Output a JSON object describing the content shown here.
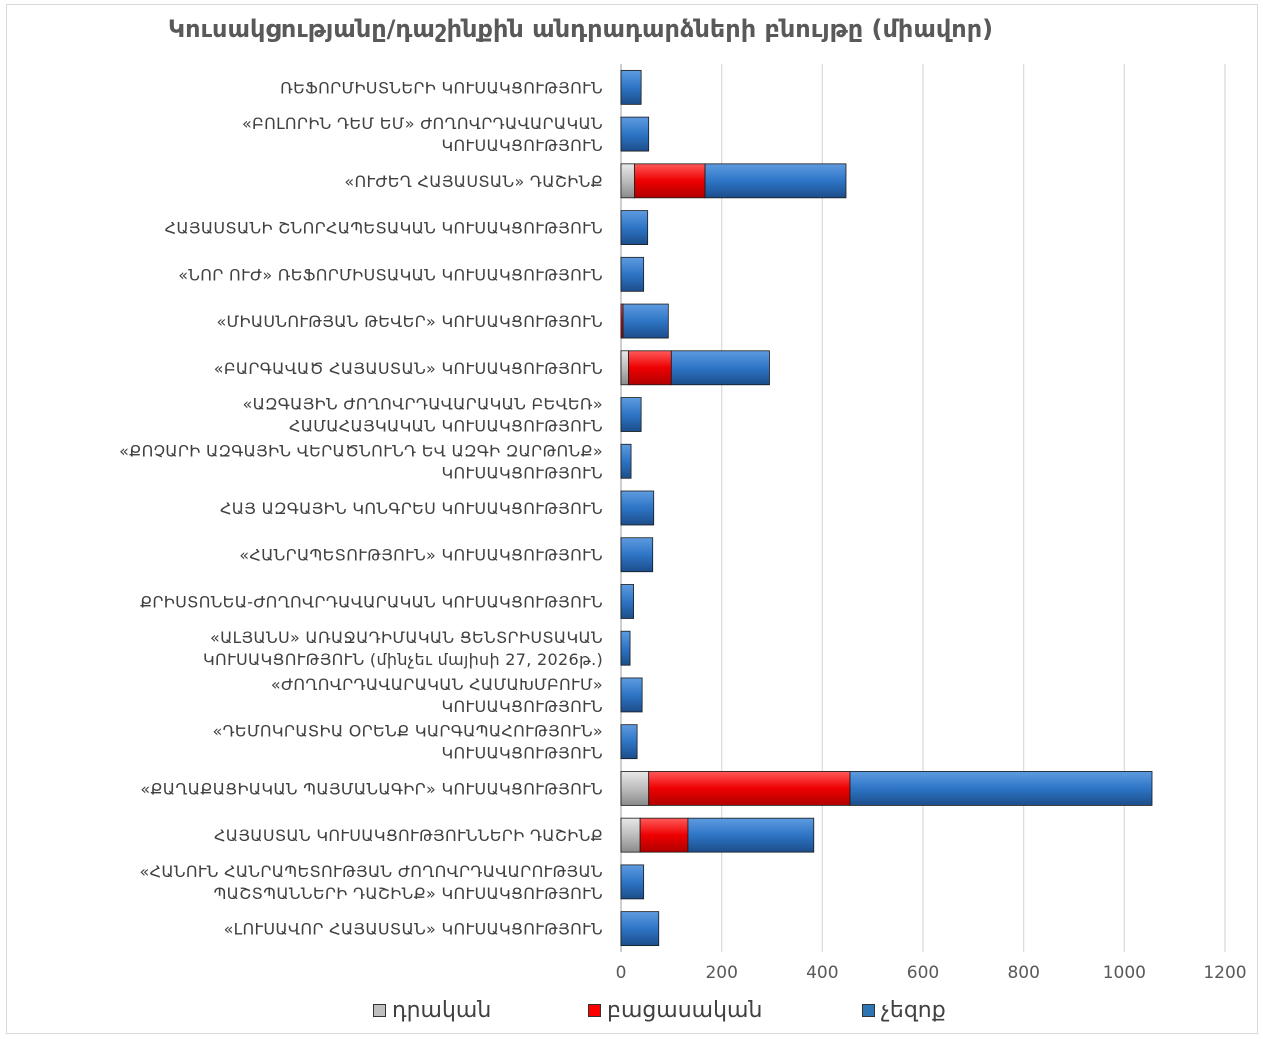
{
  "chart_data": {
    "type": "bar",
    "orientation": "horizontal",
    "stacked": true,
    "title": "Կուսակցությանը/դաշինքին անդրադարձների բնույթը (միավոր)",
    "xlim": [
      0,
      1200
    ],
    "x_ticks": [
      "0",
      "200",
      "400",
      "600",
      "800",
      "1000",
      "1200"
    ],
    "grid": true,
    "legend_position": "bottom",
    "categories": [
      [
        "ՌԵՖՈՐՄԻՍՏՆԵՐԻ ԿՈՒՍԱԿՑՈՒԹՅՈՒՆ"
      ],
      [
        "«ԲՈԼՈՐԻՆ ԴԵՄ ԵՄ» ԺՈՂՈՎՐԴԱՎԱՐԱԿԱՆ",
        "ԿՈՒՍԱԿՑՈՒԹՅՈՒՆ"
      ],
      [
        "«ՈՒԺԵՂ ՀԱՅԱՍՏԱՆ» ԴԱՇԻՆՔ"
      ],
      [
        "ՀԱՅԱՍՏԱՆԻ ՇՆՈՐՀԱՊԵՏԱԿԱՆ ԿՈՒՍԱԿՑՈՒԹՅՈՒՆ"
      ],
      [
        "«ՆՈՐ ՈՒԺ» ՌԵՖՈՐՄԻՍՏԱԿԱՆ ԿՈՒՍԱԿՑՈՒԹՅՈՒՆ"
      ],
      [
        "«ՄԻԱՍՆՈՒԹՅԱՆ ԹԵՎԵՐ» ԿՈՒՍԱԿՑՈՒԹՅՈՒՆ"
      ],
      [
        "«ԲԱՐԳԱՎԱԾ ՀԱՅԱՍՏԱՆ» ԿՈՒՍԱԿՑՈՒԹՅՈՒՆ"
      ],
      [
        "«ԱԶԳԱՅԻՆ ԺՈՂՈՎՐԴԱՎԱՐԱԿԱՆ ԲԵՎԵՌ»",
        "ՀԱՄԱՀԱՅԿԱԿԱՆ ԿՈՒՍԱԿՑՈՒԹՅՈՒՆ"
      ],
      [
        "«ՔՈՉԱՐԻ ԱԶԳԱՅԻՆ ՎԵՐԱԾՆՈՒՆԴ ԵՎ ԱԶԳԻ ԶԱՐԹՈՆՔ»",
        "ԿՈՒՍԱԿՑՈՒԹՅՈՒՆ"
      ],
      [
        "ՀԱՅ ԱԶԳԱՅԻՆ ԿՈՆԳՐԵՍ ԿՈՒՍԱԿՑՈՒԹՅՈՒՆ"
      ],
      [
        "«ՀԱՆՐԱՊԵՏՈՒԹՅՈՒՆ» ԿՈՒՍԱԿՑՈՒԹՅՈՒՆ"
      ],
      [
        "ՔՐԻՍՏՈՆԵԱ-ԺՈՂՈՎՐԴԱՎԱՐԱԿԱՆ ԿՈՒՍԱԿՑՈՒԹՅՈՒՆ"
      ],
      [
        "«ԱԼՅԱՆՍ» ԱՌԱՋԱԴԻՄԱԿԱՆ ՑԵՆՏՐԻՍՏԱԿԱՆ",
        "ԿՈՒՍԱԿՑՈՒԹՅՈՒՆ (մինչեւ մայիսի 27, 2026թ.)"
      ],
      [
        "«ԺՈՂՈՎՐԴԱՎԱՐԱԿԱՆ ՀԱՄԱԽՄԲՈՒՄ»",
        "ԿՈՒՍԱԿՑՈՒԹՅՈՒՆ"
      ],
      [
        "«ԴԵՄՈԿՐԱՏԻԱ ՕՐԵՆՔ ԿԱՐԳԱՊԱՀՈՒԹՅՈՒՆ»",
        "ԿՈՒՍԱԿՑՈՒԹՅՈՒՆ"
      ],
      [
        "«ՔԱՂԱՔԱՑԻԱԿԱՆ ՊԱՅՄԱՆԱԳԻՐ» ԿՈՒՍԱԿՑՈՒԹՅՈՒՆ"
      ],
      [
        "ՀԱՅԱՍՏԱՆ ԿՈՒՍԱԿՑՈՒԹՅՈՒՆՆԵՐԻ ԴԱՇԻՆՔ"
      ],
      [
        "«ՀԱՆՈՒՆ ՀԱՆՐԱՊԵՏՈՒԹՅԱՆ ԺՈՂՈՎՐԴԱՎԱՐՈՒԹՅԱՆ",
        "ՊԱՇՏՊԱՆՆԵՐԻ ԴԱՇԻՆՔ» ԿՈՒՍԱԿՑՈՒԹՅՈՒՆ"
      ],
      [
        "«ԼՈՒՍԱՎՈՐ ՀԱՅԱՍՏԱՆ» ԿՈՒՍԱԿՑՈՒԹՅՈՒՆ"
      ]
    ],
    "series": [
      {
        "name": "դրական",
        "color": "#bfbfbf",
        "values": [
          0,
          0,
          27,
          0,
          0,
          0,
          15,
          0,
          0,
          0,
          0,
          0,
          0,
          0,
          0,
          55,
          38,
          0,
          0
        ]
      },
      {
        "name": "բացասական",
        "color": "#ff0000",
        "values": [
          0,
          0,
          140,
          0,
          0,
          4,
          85,
          0,
          0,
          0,
          0,
          0,
          0,
          0,
          0,
          400,
          95,
          0,
          0
        ]
      },
      {
        "name": "չեզոք",
        "color": "#2e75b6",
        "values": [
          40,
          55,
          280,
          53,
          45,
          90,
          195,
          40,
          20,
          65,
          63,
          25,
          18,
          42,
          32,
          600,
          250,
          45,
          75
        ]
      }
    ]
  }
}
